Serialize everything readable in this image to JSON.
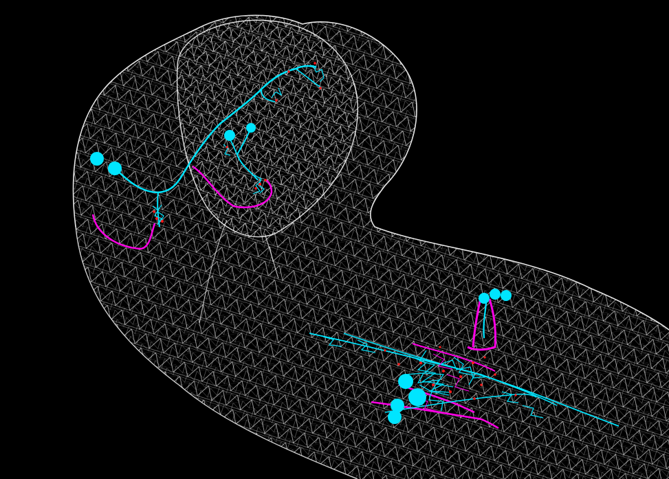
{
  "scene": {
    "background_color": "#000000",
    "mesh_color": "#ffffff",
    "neuron_colors": {
      "primary": "#00e5ff",
      "secondary": "#ff00e6",
      "synapse": "#ff1a1a"
    },
    "soma_count_brain": 4,
    "soma_count_spinal": 6
  }
}
